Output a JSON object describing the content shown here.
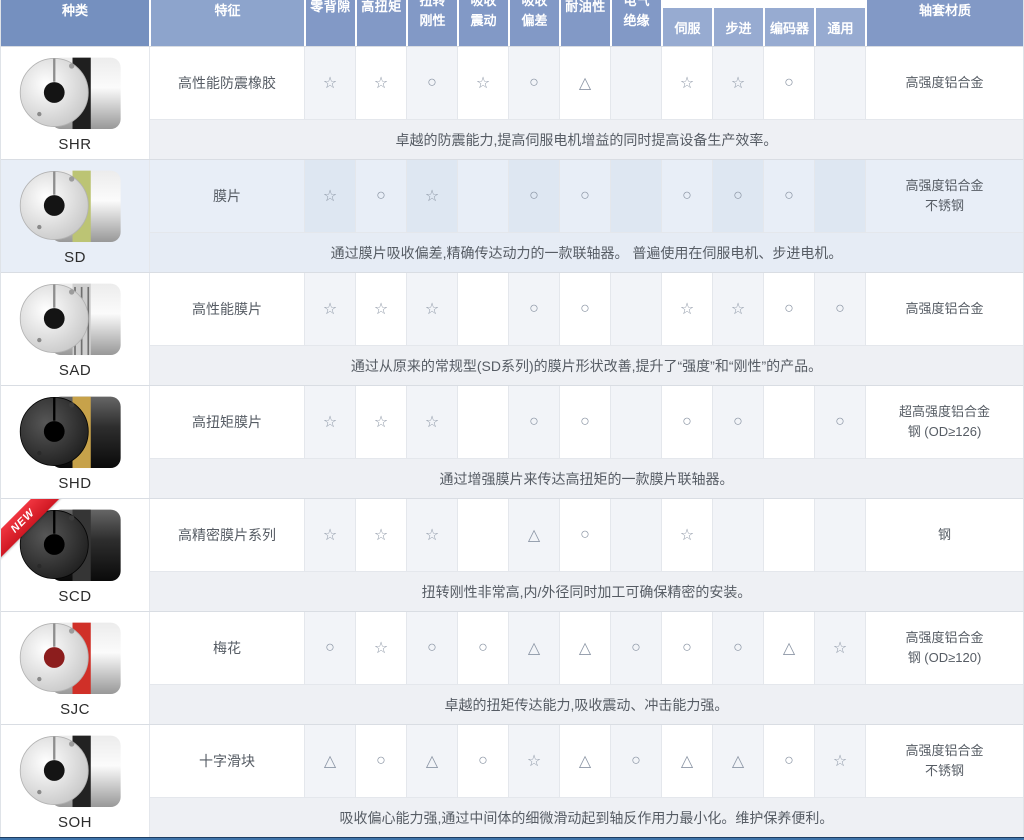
{
  "table": {
    "header": {
      "type_label": "种类",
      "feature_label": "特征",
      "symbol_columns": [
        {
          "label": "零背隙",
          "lines": [
            "零背隙"
          ]
        },
        {
          "label": "高扭矩",
          "lines": [
            "高扭矩"
          ]
        },
        {
          "label": "扭转刚性",
          "lines": [
            "扭转",
            "刚性"
          ]
        },
        {
          "label": "吸收震动",
          "lines": [
            "吸收",
            "震动"
          ]
        },
        {
          "label": "吸收偏差",
          "lines": [
            "吸收",
            "偏差"
          ]
        },
        {
          "label": "耐油性",
          "lines": [
            "耐油性"
          ]
        },
        {
          "label": "电气绝缘",
          "lines": [
            "电气",
            "绝缘"
          ]
        }
      ],
      "motor_columns": [
        "伺服",
        "步进",
        "编码器",
        "通用"
      ],
      "material_label": "轴套材质"
    },
    "rating_symbols": {
      "excellent": "☆",
      "good": "○",
      "fair": "△",
      "none": ""
    },
    "new_badge_label": "NEW",
    "colors": {
      "header_type_bg": "#7590bf",
      "header_feature_bg": "#8da4cc",
      "header_symbol_bg": "#8299c6",
      "header_motor_bg": "#97abd1",
      "ribbon_red": "#e8232e",
      "symbol_gray": "#8d97a6",
      "accent_line_blue": "#3f74aa"
    },
    "products": [
      {
        "code": "SHR",
        "feature": "高性能防震橡胶",
        "ratings": [
          "☆",
          "☆",
          "○",
          "☆",
          "○",
          "△",
          "",
          "☆",
          "☆",
          "○",
          ""
        ],
        "material_lines": [
          "高强度铝合金"
        ],
        "description": "卓越的防震能力,提高伺服电机增益的同时提高设备生产效率。",
        "new_badge": false,
        "highlighted": false,
        "photo": {
          "body": "silver",
          "band": "#1f1f1f",
          "bore": "#141414"
        }
      },
      {
        "code": "SD",
        "feature": "膜片",
        "ratings": [
          "☆",
          "○",
          "☆",
          "",
          "○",
          "○",
          "",
          "○",
          "○",
          "○",
          ""
        ],
        "material_lines": [
          "高强度铝合金",
          "不锈钢"
        ],
        "description": "通过膜片吸收偏差,精确传达动力的一款联轴器。 普遍使用在伺服电机、步进电机。",
        "new_badge": false,
        "highlighted": true,
        "photo": {
          "body": "silver",
          "band": "#bcc474",
          "bore": "#141414"
        }
      },
      {
        "code": "SAD",
        "feature": "高性能膜片",
        "ratings": [
          "☆",
          "☆",
          "☆",
          "",
          "○",
          "○",
          "",
          "☆",
          "☆",
          "○",
          "○"
        ],
        "material_lines": [
          "高强度铝合金"
        ],
        "description": "通过从原来的常规型(SD系列)的膜片形状改善,提升了“强度”和“刚性”的产品。",
        "new_badge": false,
        "highlighted": false,
        "photo": {
          "body": "silver",
          "band": "#cfcfcf",
          "bore": "#141414",
          "slits": true
        }
      },
      {
        "code": "SHD",
        "feature": "高扭矩膜片",
        "ratings": [
          "☆",
          "☆",
          "☆",
          "",
          "○",
          "○",
          "",
          "○",
          "○",
          "",
          "○"
        ],
        "material_lines": [
          "超高强度铝合金",
          "钢 (OD≥126)"
        ],
        "description": "通过增强膜片来传达高扭矩的一款膜片联轴器。",
        "new_badge": false,
        "highlighted": false,
        "photo": {
          "body": "black",
          "band": "#c7a24a",
          "bore": "#000000"
        }
      },
      {
        "code": "SCD",
        "feature": "高精密膜片系列",
        "ratings": [
          "☆",
          "☆",
          "☆",
          "",
          "△",
          "○",
          "",
          "☆",
          "",
          "",
          ""
        ],
        "material_lines": [
          "钢"
        ],
        "description": "扭转刚性非常高,内/外径同时加工可确保精密的安装。",
        "new_badge": true,
        "highlighted": false,
        "photo": {
          "body": "black",
          "band": "#353535",
          "bore": "#000000"
        }
      },
      {
        "code": "SJC",
        "feature": "梅花",
        "ratings": [
          "○",
          "☆",
          "○",
          "○",
          "△",
          "△",
          "○",
          "○",
          "○",
          "△",
          "☆"
        ],
        "material_lines": [
          "高强度铝合金",
          "钢 (OD≥120)"
        ],
        "description": "卓越的扭矩传达能力,吸收震动、冲击能力强。",
        "new_badge": false,
        "highlighted": false,
        "photo": {
          "body": "silver",
          "band": "#d03028",
          "bore": "#8c1d1d"
        }
      },
      {
        "code": "SOH",
        "feature": "十字滑块",
        "ratings": [
          "△",
          "○",
          "△",
          "○",
          "☆",
          "△",
          "○",
          "△",
          "△",
          "○",
          "☆"
        ],
        "material_lines": [
          "高强度铝合金",
          "不锈钢"
        ],
        "description": "吸收偏心能力强,通过中间体的细微滑动起到轴反作用力最小化。维护保养便利。",
        "new_badge": false,
        "highlighted": false,
        "photo": {
          "body": "silver",
          "band": "#222222",
          "bore": "#141414"
        }
      }
    ]
  }
}
